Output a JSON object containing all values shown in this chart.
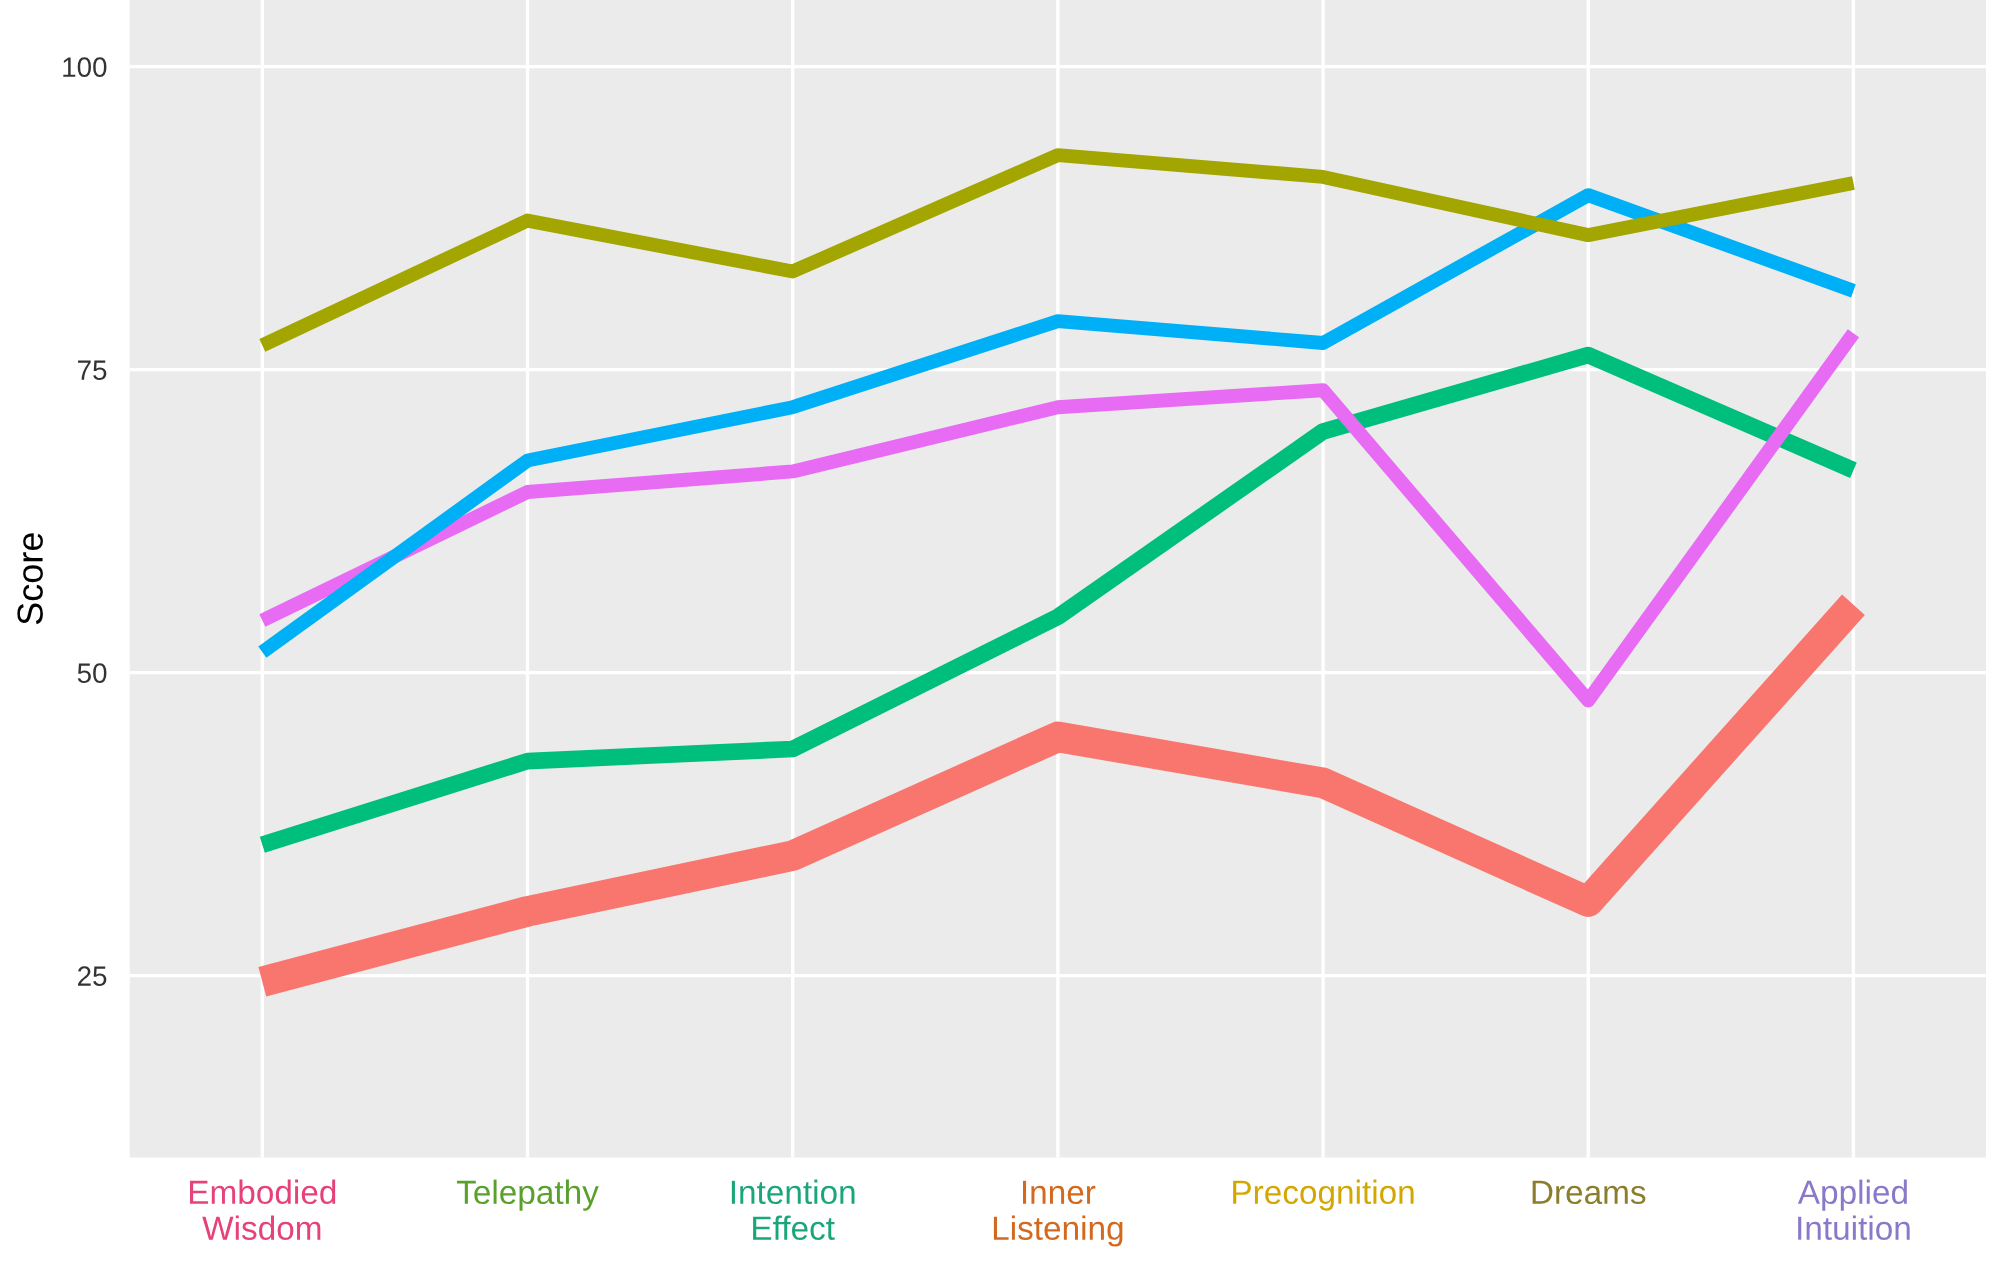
{
  "chart_data": {
    "type": "line",
    "ylabel": "Score",
    "categories": [
      "Embodied\nWisdom",
      "Telepathy",
      "Intention\nEffect",
      "Inner\nListening",
      "Precognition",
      "Dreams",
      "Applied\nIntuition"
    ],
    "series": [
      {
        "color": "#f8766d",
        "values": [
          24.5,
          30.3,
          34.9,
          44.7,
          40.9,
          31.1,
          55.6
        ]
      },
      {
        "color": "#00bf7d",
        "values": [
          35.8,
          42.7,
          43.7,
          54.6,
          69.9,
          76.2,
          66.7
        ]
      },
      {
        "color": "#e76bf3",
        "values": [
          54.3,
          64.9,
          66.6,
          71.9,
          73.3,
          47.7,
          78
        ]
      },
      {
        "color": "#00b0f6",
        "values": [
          51.7,
          67.5,
          71.9,
          79,
          77.2,
          89.4,
          81.5
        ]
      },
      {
        "color": "#a3a500",
        "values": [
          77,
          87.3,
          83.1,
          92.7,
          90.9,
          86.1,
          90.4
        ]
      }
    ],
    "ylim": [
      10,
      105.5
    ],
    "yticks": [
      25,
      50,
      75,
      100
    ],
    "grid": true,
    "line_style": "solid",
    "marker": "none"
  }
}
